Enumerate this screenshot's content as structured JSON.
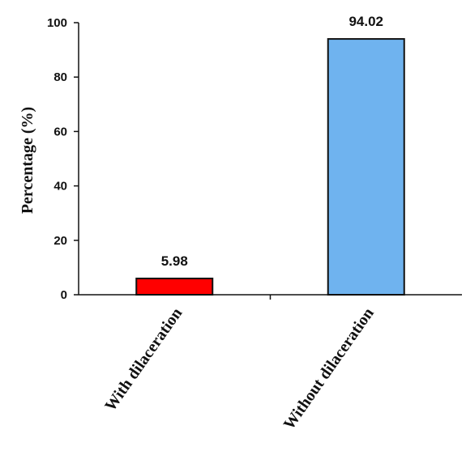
{
  "chart_data": {
    "type": "bar",
    "categories": [
      "With dilaceration",
      "Without dilaceration"
    ],
    "values": [
      5.98,
      94.02
    ],
    "data_labels": [
      "5.98",
      "94.02"
    ],
    "colors": [
      "#ff0000",
      "#6fb3ef"
    ],
    "ylabel": "Percentage (%)",
    "xlabel": "",
    "ylim": [
      0,
      100
    ],
    "yticks": [
      0,
      20,
      40,
      60,
      80,
      100
    ],
    "grid": false,
    "legend": "none"
  }
}
